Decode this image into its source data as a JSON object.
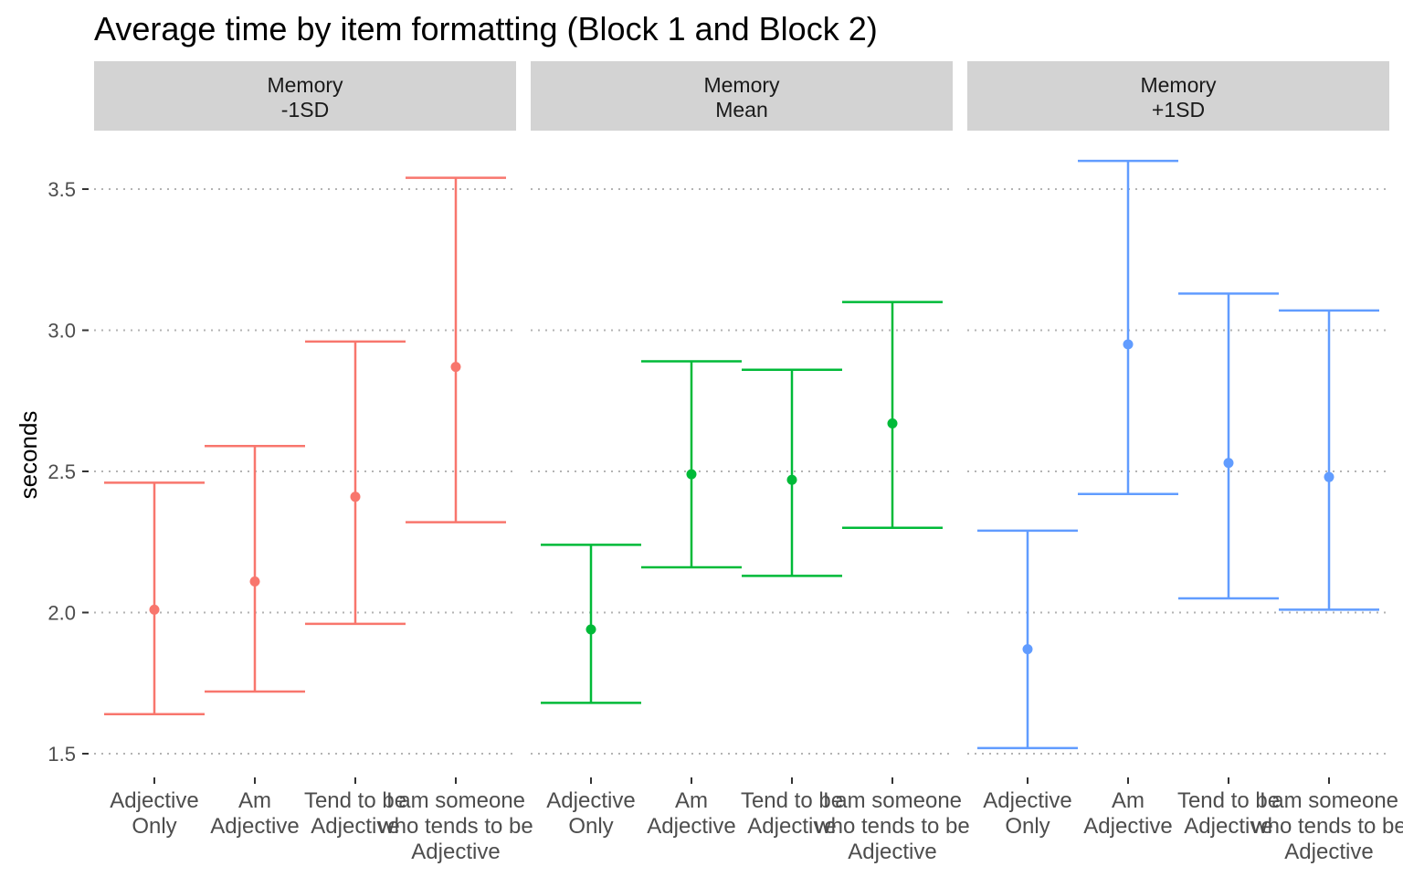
{
  "chart_data": {
    "type": "errorbar",
    "title": "Average time by item formatting (Block 1 and Block 2)",
    "xlabel": "",
    "ylabel": "seconds",
    "ylim": [
      1.45,
      3.63
    ],
    "yticks": [
      "1.5",
      "2.0",
      "2.5",
      "3.0",
      "3.5"
    ],
    "grid": "dotted horizontal",
    "categories": [
      [
        "Adjective",
        "Only"
      ],
      [
        "Am",
        "Adjective"
      ],
      [
        "Tend to be",
        "Adjective"
      ],
      [
        "I am someone",
        "who tends to be",
        "Adjective"
      ]
    ],
    "panels": [
      {
        "strip": [
          "Memory",
          "-1SD"
        ],
        "color": "#F8766D",
        "points": [
          {
            "mean": 2.01,
            "lower": 1.64,
            "upper": 2.46
          },
          {
            "mean": 2.11,
            "lower": 1.72,
            "upper": 2.59
          },
          {
            "mean": 2.41,
            "lower": 1.96,
            "upper": 2.96
          },
          {
            "mean": 2.87,
            "lower": 2.32,
            "upper": 3.54
          }
        ]
      },
      {
        "strip": [
          "Memory",
          "Mean"
        ],
        "color": "#00BA38",
        "points": [
          {
            "mean": 1.94,
            "lower": 1.68,
            "upper": 2.24
          },
          {
            "mean": 2.49,
            "lower": 2.16,
            "upper": 2.89
          },
          {
            "mean": 2.47,
            "lower": 2.13,
            "upper": 2.86
          },
          {
            "mean": 2.67,
            "lower": 2.3,
            "upper": 3.1
          }
        ]
      },
      {
        "strip": [
          "Memory",
          "+1SD"
        ],
        "color": "#619CFF",
        "points": [
          {
            "mean": 1.87,
            "lower": 1.52,
            "upper": 2.29
          },
          {
            "mean": 2.95,
            "lower": 2.42,
            "upper": 3.6
          },
          {
            "mean": 2.53,
            "lower": 2.05,
            "upper": 3.13
          },
          {
            "mean": 2.48,
            "lower": 2.01,
            "upper": 3.07
          }
        ]
      }
    ]
  }
}
